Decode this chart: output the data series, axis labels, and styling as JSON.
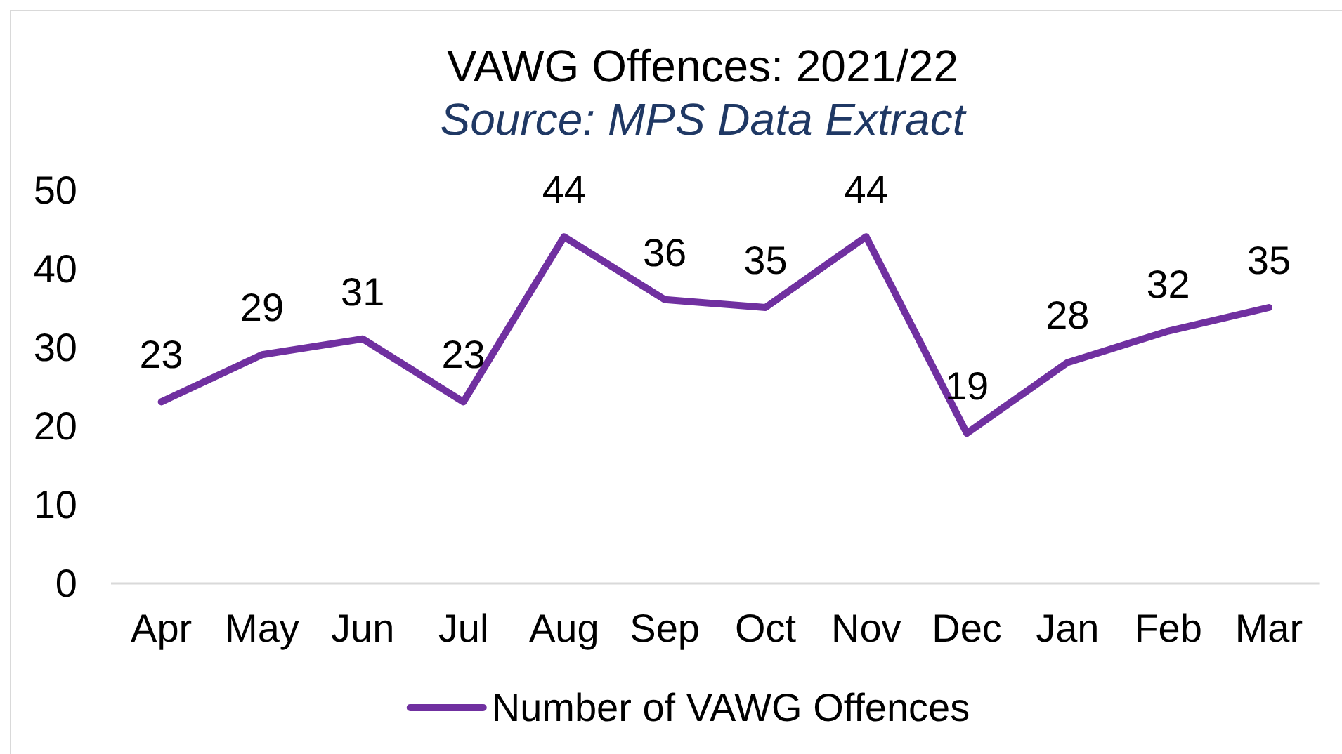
{
  "chart_data": {
    "type": "line",
    "title": "VAWG Offences: 2021/22",
    "subtitle": "Source: MPS Data Extract",
    "categories": [
      "Apr",
      "May",
      "Jun",
      "Jul",
      "Aug",
      "Sep",
      "Oct",
      "Nov",
      "Dec",
      "Jan",
      "Feb",
      "Mar"
    ],
    "series": [
      {
        "name": "Number of VAWG Offences",
        "color": "#7030a0",
        "values": [
          23,
          29,
          31,
          23,
          44,
          36,
          35,
          44,
          19,
          28,
          32,
          35
        ]
      }
    ],
    "ylim": [
      0,
      50
    ],
    "yticks": [
      0,
      10,
      20,
      30,
      40,
      50
    ],
    "data_labels": true,
    "legend": "bottom"
  }
}
